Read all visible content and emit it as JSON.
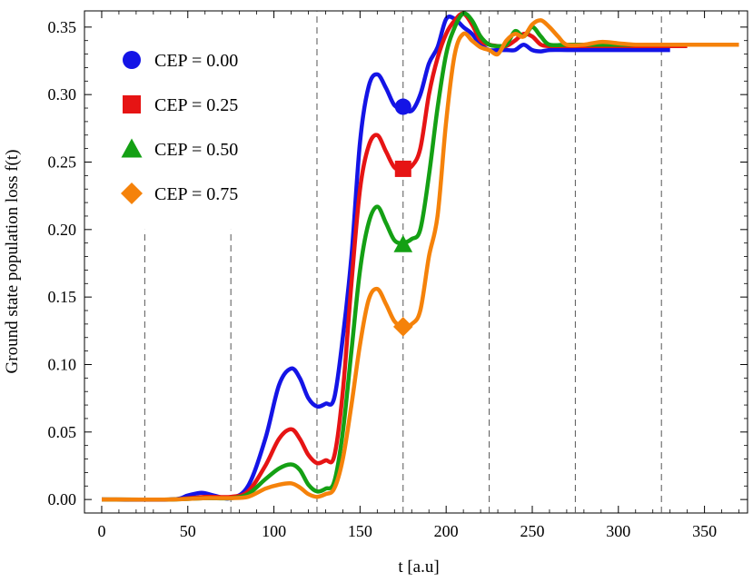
{
  "chart_data": {
    "type": "line",
    "xlabel": "t  [a.u]",
    "ylabel": "Ground  state  population  loss  f(t)",
    "xlim": [
      -10,
      375
    ],
    "ylim": [
      -0.01,
      0.362
    ],
    "xticks": [
      0,
      50,
      100,
      150,
      200,
      250,
      300,
      350
    ],
    "yticks": [
      0.0,
      0.05,
      0.1,
      0.15,
      0.2,
      0.25,
      0.3,
      0.35
    ],
    "ytick_labels": [
      "0.00",
      "0.05",
      "0.10",
      "0.15",
      "0.20",
      "0.25",
      "0.30",
      "0.35"
    ],
    "grid": false,
    "legend_position": "top-left",
    "vlines": [
      {
        "x": 25,
        "ymax": 0.2
      },
      {
        "x": 75,
        "ymax": 0.2
      },
      {
        "x": 125,
        "ymax": 0.362
      },
      {
        "x": 175,
        "ymax": 0.362
      },
      {
        "x": 225,
        "ymax": 0.362
      },
      {
        "x": 275,
        "ymax": 0.362
      },
      {
        "x": 325,
        "ymax": 0.362
      }
    ],
    "series": [
      {
        "name": "CEP = 0.00",
        "color": "#1414e6",
        "marker": "circle",
        "marker_point": [
          175,
          0.291
        ],
        "x": [
          0,
          40,
          50,
          58,
          65,
          75,
          85,
          95,
          103,
          110,
          115,
          120,
          125,
          130,
          135,
          140,
          145,
          150,
          155,
          160,
          165,
          170,
          175,
          180,
          185,
          190,
          195,
          200,
          205,
          210,
          215,
          220,
          225,
          230,
          235,
          240,
          245,
          250,
          255,
          260,
          270,
          280,
          290,
          300,
          310,
          320,
          330
        ],
        "y": [
          0.0,
          0.0,
          0.003,
          0.005,
          0.003,
          0.001,
          0.01,
          0.045,
          0.085,
          0.097,
          0.09,
          0.075,
          0.069,
          0.071,
          0.075,
          0.12,
          0.18,
          0.265,
          0.306,
          0.315,
          0.305,
          0.292,
          0.29,
          0.288,
          0.3,
          0.323,
          0.335,
          0.356,
          0.356,
          0.35,
          0.345,
          0.337,
          0.333,
          0.333,
          0.333,
          0.333,
          0.337,
          0.333,
          0.332,
          0.333,
          0.333,
          0.333,
          0.333,
          0.333,
          0.333,
          0.333,
          0.333
        ]
      },
      {
        "name": "CEP = 0.25",
        "color": "#e61414",
        "marker": "square",
        "marker_point": [
          175,
          0.245
        ],
        "x": [
          0,
          40,
          60,
          75,
          85,
          95,
          103,
          110,
          115,
          120,
          125,
          130,
          135,
          140,
          145,
          150,
          155,
          160,
          165,
          170,
          175,
          180,
          185,
          190,
          195,
          200,
          205,
          210,
          215,
          220,
          225,
          230,
          235,
          240,
          245,
          250,
          255,
          260,
          270,
          280,
          290,
          300,
          310,
          320,
          330,
          340
        ],
        "y": [
          0.0,
          0.0,
          0.002,
          0.002,
          0.006,
          0.025,
          0.045,
          0.052,
          0.045,
          0.033,
          0.027,
          0.029,
          0.032,
          0.08,
          0.16,
          0.23,
          0.262,
          0.27,
          0.258,
          0.246,
          0.245,
          0.247,
          0.26,
          0.3,
          0.327,
          0.345,
          0.355,
          0.36,
          0.352,
          0.34,
          0.337,
          0.336,
          0.336,
          0.34,
          0.345,
          0.343,
          0.337,
          0.336,
          0.336,
          0.336,
          0.336,
          0.336,
          0.336,
          0.336,
          0.336,
          0.336
        ]
      },
      {
        "name": "CEP = 0.50",
        "color": "#14a014",
        "marker": "triangle",
        "marker_point": [
          175,
          0.189
        ],
        "x": [
          0,
          40,
          60,
          75,
          85,
          95,
          103,
          110,
          115,
          120,
          125,
          130,
          135,
          140,
          145,
          150,
          155,
          160,
          165,
          170,
          175,
          180,
          185,
          190,
          195,
          200,
          205,
          210,
          215,
          220,
          225,
          230,
          235,
          240,
          245,
          250,
          255,
          260,
          270,
          280,
          290,
          300,
          310,
          320,
          330,
          340,
          355
        ],
        "y": [
          0.0,
          0.0,
          0.001,
          0.001,
          0.004,
          0.015,
          0.023,
          0.026,
          0.022,
          0.011,
          0.006,
          0.008,
          0.013,
          0.05,
          0.11,
          0.17,
          0.205,
          0.217,
          0.205,
          0.192,
          0.19,
          0.193,
          0.2,
          0.24,
          0.29,
          0.33,
          0.35,
          0.36,
          0.355,
          0.343,
          0.337,
          0.336,
          0.337,
          0.347,
          0.343,
          0.35,
          0.343,
          0.337,
          0.337,
          0.337,
          0.337,
          0.337,
          0.337,
          0.337,
          0.337,
          0.337,
          0.337
        ]
      },
      {
        "name": "CEP = 0.75",
        "color": "#f5820a",
        "marker": "diamond",
        "marker_point": [
          175,
          0.128
        ],
        "x": [
          0,
          40,
          60,
          75,
          85,
          95,
          103,
          110,
          115,
          120,
          125,
          130,
          135,
          140,
          145,
          150,
          155,
          160,
          165,
          170,
          175,
          180,
          185,
          190,
          195,
          200,
          205,
          210,
          215,
          220,
          225,
          230,
          235,
          240,
          245,
          250,
          255,
          260,
          265,
          270,
          280,
          290,
          300,
          310,
          320,
          330,
          340,
          350,
          360,
          370
        ],
        "y": [
          0.0,
          0.0,
          0.001,
          0.001,
          0.002,
          0.008,
          0.011,
          0.012,
          0.009,
          0.004,
          0.002,
          0.004,
          0.008,
          0.03,
          0.07,
          0.115,
          0.148,
          0.156,
          0.145,
          0.132,
          0.128,
          0.13,
          0.14,
          0.18,
          0.21,
          0.28,
          0.33,
          0.345,
          0.34,
          0.335,
          0.333,
          0.33,
          0.34,
          0.345,
          0.343,
          0.352,
          0.355,
          0.35,
          0.343,
          0.337,
          0.337,
          0.339,
          0.338,
          0.337,
          0.337,
          0.337,
          0.337,
          0.337,
          0.337,
          0.337
        ]
      }
    ]
  }
}
